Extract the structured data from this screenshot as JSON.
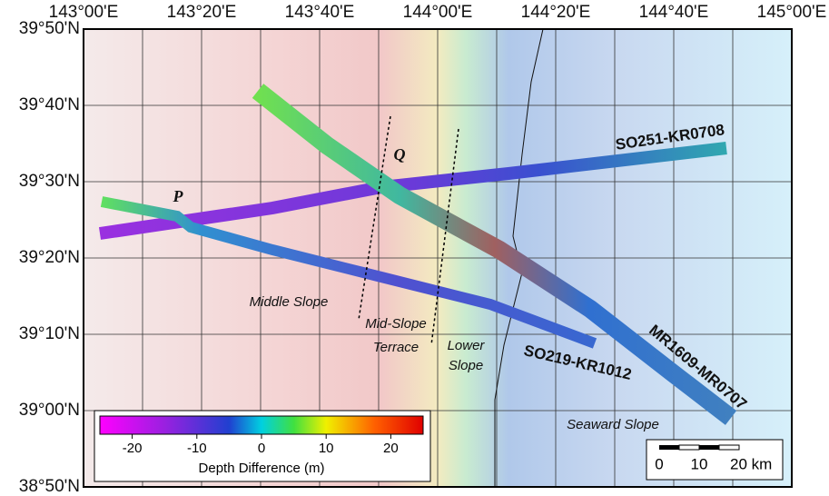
{
  "map": {
    "lon_ticks": [
      "143°00'E",
      "143°20'E",
      "143°40'E",
      "144°00'E",
      "144°20'E",
      "144°40'E",
      "145°00'E"
    ],
    "lat_ticks": [
      "39°50'N",
      "39°40'N",
      "39°30'N",
      "39°20'N",
      "39°10'N",
      "39°00'N",
      "38°50'N"
    ],
    "points": [
      "P",
      "Q"
    ],
    "regions": [
      "Middle Slope",
      "Mid-Slope",
      "Terrace",
      "Lower",
      "Slope",
      "Seaward Slope"
    ],
    "tracks": [
      "SO251-KR0708",
      "SO219-KR1012",
      "MR1609-MR0707"
    ],
    "colorbar": {
      "label": "Depth Difference (m)",
      "range": [
        -25,
        25
      ],
      "ticks": [
        -20,
        -10,
        0,
        10,
        20
      ]
    },
    "scale_bar": {
      "labels": [
        "0",
        "10",
        "20 km"
      ]
    }
  }
}
